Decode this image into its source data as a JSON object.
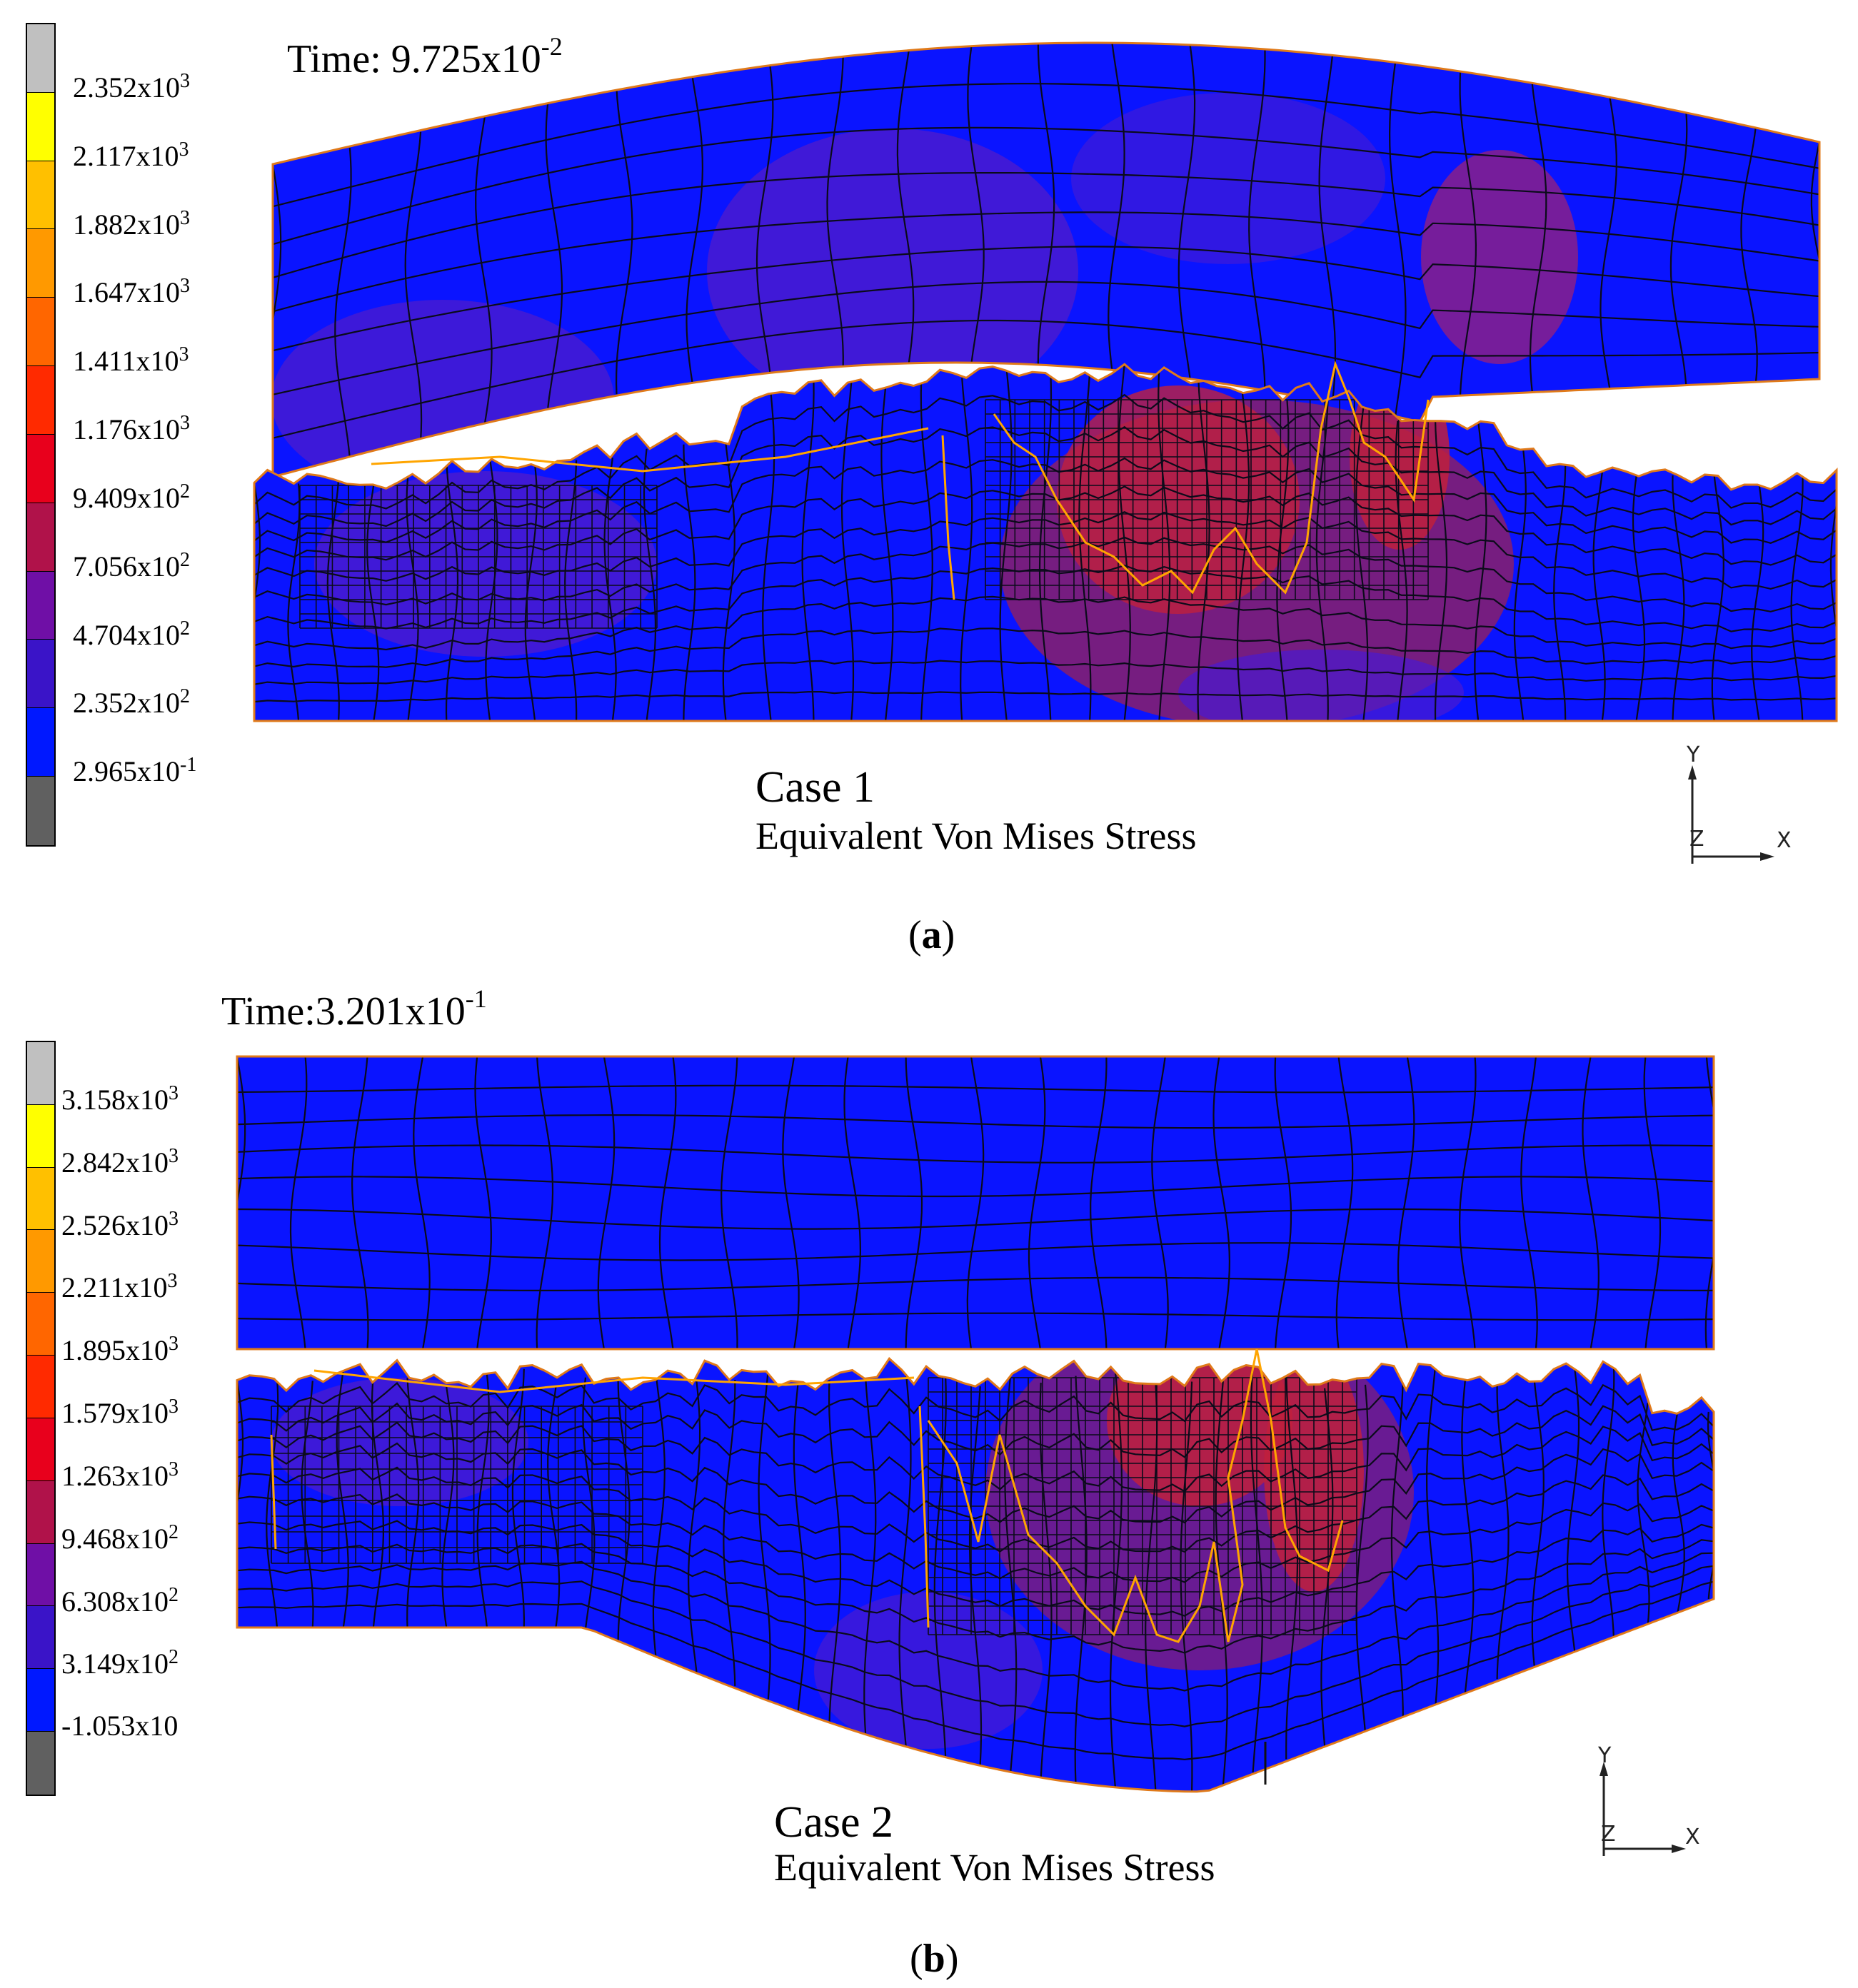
{
  "panels": [
    {
      "id": "a",
      "tag": "a",
      "time_label": "Time: 9.725x10",
      "time_exp": "-2",
      "case_title": "Case 1",
      "case_subtitle": "Equivalent Von Mises Stress",
      "legend": [
        {
          "base": "2.352x10",
          "exp": "3"
        },
        {
          "base": "2.117x10",
          "exp": "3"
        },
        {
          "base": "1.882x10",
          "exp": "3"
        },
        {
          "base": "1.647x10",
          "exp": "3"
        },
        {
          "base": "1.411x10",
          "exp": "3"
        },
        {
          "base": "1.176x10",
          "exp": "3"
        },
        {
          "base": "9.409x10",
          "exp": "2"
        },
        {
          "base": "7.056x10",
          "exp": "2"
        },
        {
          "base": "4.704x10",
          "exp": "2"
        },
        {
          "base": "2.352x10",
          "exp": "2"
        },
        {
          "base": "2.965x10",
          "exp": "-1"
        }
      ],
      "axis": {
        "y": "Y",
        "x": "X",
        "z": "Z"
      }
    },
    {
      "id": "b",
      "tag": "b",
      "time_label": "Time:3.201x10",
      "time_exp": "-1",
      "case_title": "Case 2",
      "case_subtitle": "Equivalent Von Mises Stress",
      "legend": [
        {
          "base": "3.158x10",
          "exp": "3"
        },
        {
          "base": "2.842x10",
          "exp": "3"
        },
        {
          "base": "2.526x10",
          "exp": "3"
        },
        {
          "base": "2.211x10",
          "exp": "3"
        },
        {
          "base": "1.895x10",
          "exp": "3"
        },
        {
          "base": "1.579x10",
          "exp": "3"
        },
        {
          "base": "1.263x10",
          "exp": "3"
        },
        {
          "base": "9.468x10",
          "exp": "2"
        },
        {
          "base": "6.308x10",
          "exp": "2"
        },
        {
          "base": "3.149x10",
          "exp": "2"
        },
        {
          "base": "-1.053x10",
          "exp": ""
        }
      ],
      "axis": {
        "y": "Y",
        "x": "X",
        "z": "Z"
      }
    }
  ],
  "colors": {
    "legend_scale": [
      "#c0c0c0",
      "#ffff00",
      "#ffc000",
      "#ff9900",
      "#ff6600",
      "#ff2a00",
      "#e8001c",
      "#b0124a",
      "#6f0fa6",
      "#3a14c8",
      "#0018ff",
      "#606060"
    ],
    "low_stress": "#0a14ff",
    "mid_stress": "#4a1ad0",
    "high_stress": "#c0203c",
    "mesh_line": "#0b0b1a",
    "contact_edge": "#ffa500"
  }
}
